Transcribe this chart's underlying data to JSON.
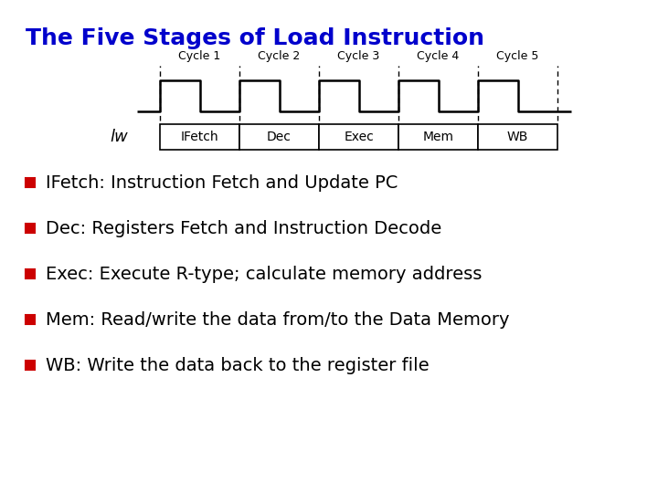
{
  "title": "The Five Stages of Load Instruction",
  "title_color": "#0000CC",
  "title_fontsize": 18,
  "title_bold": true,
  "bg_color": "#FFFFFF",
  "cycle_labels": [
    "Cycle 1",
    "Cycle 2",
    "Cycle 3",
    "Cycle 4",
    "Cycle 5"
  ],
  "stage_labels": [
    "IFetch",
    "Dec",
    "Exec",
    "Mem",
    "WB"
  ],
  "lw_label": "lw",
  "bullet_color": "#CC0000",
  "bullet_items": [
    "IFetch: Instruction Fetch and Update PC",
    "Dec: Registers Fetch and Instruction Decode",
    "Exec: Execute R-type; calculate memory address",
    "Mem: Read/write the data from/to the Data Memory",
    "WB: Write the data back to the register file"
  ],
  "item_fontsize": 14,
  "item_color": "#000000"
}
